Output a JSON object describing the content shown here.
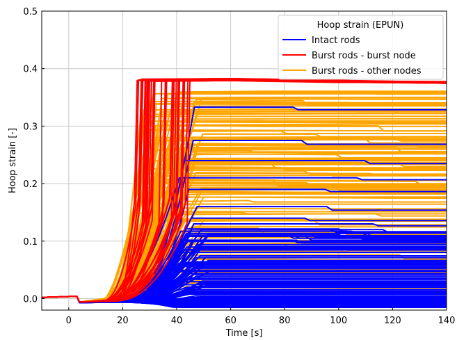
{
  "chart_data": {
    "type": "line",
    "xlabel": "Time [s]",
    "ylabel": "Hoop strain [-]",
    "xlim": [
      -10,
      140
    ],
    "ylim": [
      -0.02,
      0.5
    ],
    "xticks": [
      "0",
      "20",
      "40",
      "60",
      "80",
      "100",
      "120",
      "140"
    ],
    "xtick_values": [
      0,
      20,
      40,
      60,
      80,
      100,
      120,
      140
    ],
    "yticks": [
      "0.0",
      "0.1",
      "0.2",
      "0.3",
      "0.4",
      "0.5"
    ],
    "ytick_values": [
      0.0,
      0.1,
      0.2,
      0.3,
      0.4,
      0.5
    ],
    "grid": true,
    "legend": {
      "title": "Hoop strain (EPUN)",
      "placement": "top-right",
      "entries": [
        {
          "label": "Intact rods",
          "color": "#0000ff"
        },
        {
          "label": "Burst rods - burst node",
          "color": "#ff0000"
        },
        {
          "label": "Burst rods - other nodes",
          "color": "#ffa500"
        }
      ]
    },
    "series": [
      {
        "name": "Burst rods - other nodes",
        "color": "#ffa500",
        "description_levels": {
          "initial": 0.002,
          "burst_time_range": [
            12,
            50
          ],
          "final_strain_range": [
            0.0,
            0.37
          ],
          "count": 120
        }
      },
      {
        "name": "Intact rods",
        "color": "#0000ff",
        "description_levels": {
          "initial": 0.002,
          "rise_time_range": [
            15,
            52
          ],
          "final_strain_range": [
            -0.015,
            0.335
          ],
          "count": 140,
          "highlighted_final_values": [
            0.333,
            0.275,
            0.24,
            0.21,
            0.19,
            0.16,
            0.14,
            0.13,
            0.12,
            0.1
          ]
        }
      },
      {
        "name": "Burst rods - burst node",
        "color": "#ff0000",
        "description_levels": {
          "initial": 0.002,
          "burst_time_range": [
            12,
            45
          ],
          "plateau": 0.38,
          "final": 0.376,
          "count": 30
        }
      }
    ]
  }
}
